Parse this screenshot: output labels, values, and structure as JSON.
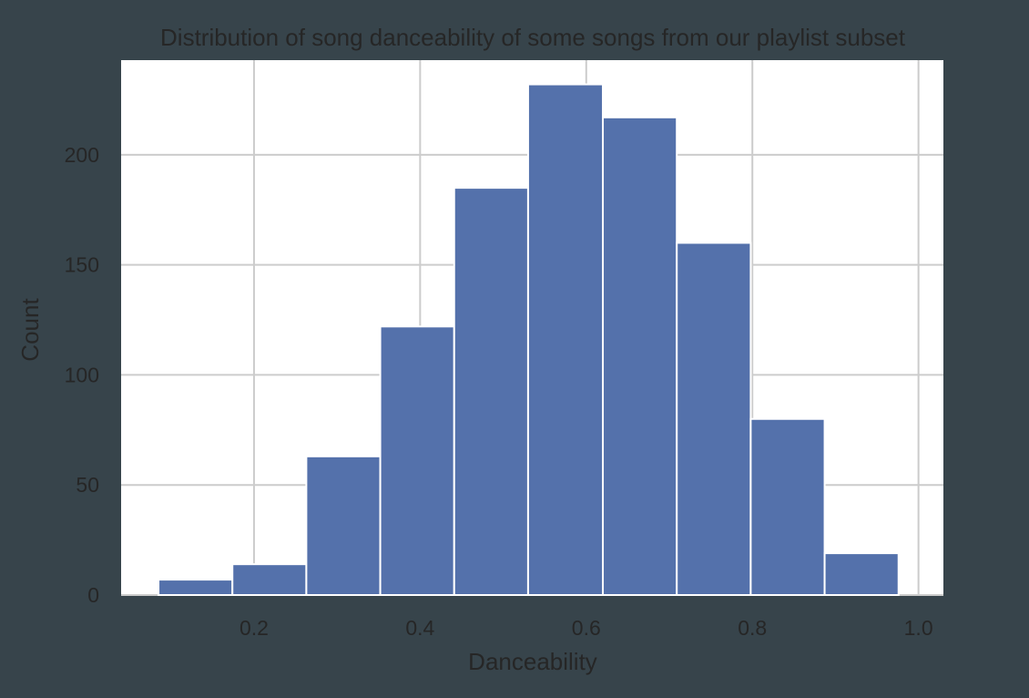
{
  "chart_data": {
    "type": "bar",
    "title": "Distribution of song danceability of some songs from our playlist subset",
    "xlabel": "Danceability",
    "ylabel": "Count",
    "xlim": [
      0.04,
      1.03
    ],
    "ylim": [
      0,
      243
    ],
    "xticks": [
      0.2,
      0.4,
      0.6,
      0.8,
      1.0
    ],
    "xtick_labels": [
      "0.2",
      "0.4",
      "0.6",
      "0.8",
      "1.0"
    ],
    "yticks": [
      0,
      50,
      100,
      150,
      200
    ],
    "ytick_labels": [
      "0",
      "50",
      "100",
      "150",
      "200"
    ],
    "grid": true,
    "bins": [
      {
        "x0": 0.085,
        "x1": 0.174,
        "count": 7
      },
      {
        "x0": 0.174,
        "x1": 0.263,
        "count": 14
      },
      {
        "x0": 0.263,
        "x1": 0.352,
        "count": 63
      },
      {
        "x0": 0.352,
        "x1": 0.441,
        "count": 122
      },
      {
        "x0": 0.441,
        "x1": 0.53,
        "count": 185
      },
      {
        "x0": 0.53,
        "x1": 0.62,
        "count": 232
      },
      {
        "x0": 0.62,
        "x1": 0.709,
        "count": 217
      },
      {
        "x0": 0.709,
        "x1": 0.798,
        "count": 160
      },
      {
        "x0": 0.798,
        "x1": 0.887,
        "count": 80
      },
      {
        "x0": 0.887,
        "x1": 0.976,
        "count": 19
      }
    ],
    "colors": {
      "bar": "#5471ab",
      "plot_background": "#ffffff",
      "figure_background": "#37444b",
      "grid": "#cccccc"
    }
  }
}
